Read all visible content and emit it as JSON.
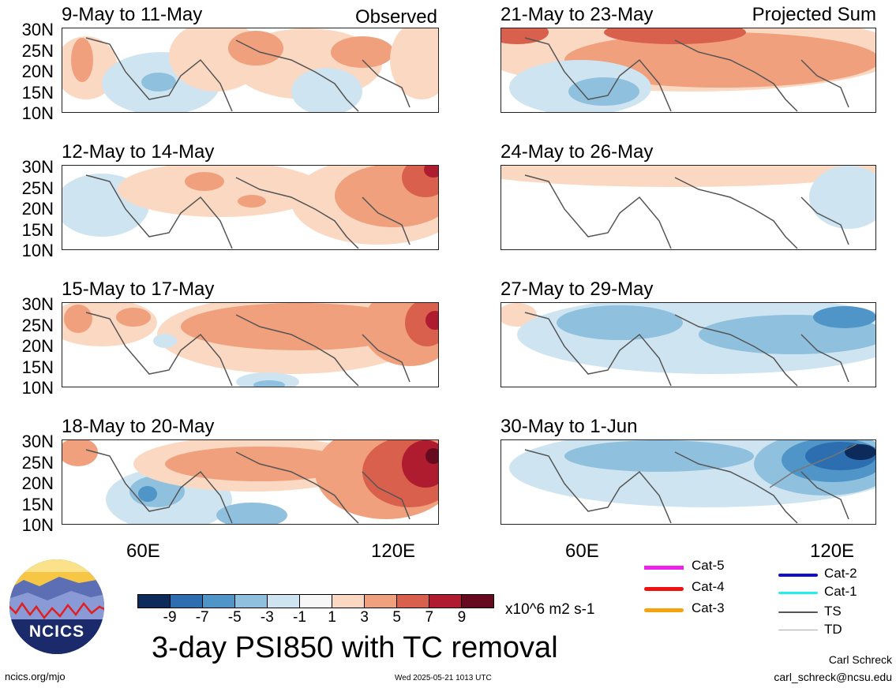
{
  "panels_left": [
    {
      "title": "9-May to 11-May",
      "tag": "Observed"
    },
    {
      "title": "12-May to 14-May",
      "tag": ""
    },
    {
      "title": "15-May to 17-May",
      "tag": ""
    },
    {
      "title": "18-May to 20-May",
      "tag": ""
    }
  ],
  "panels_right": [
    {
      "title": "21-May to 23-May",
      "tag": "Projected Sum"
    },
    {
      "title": "24-May to 26-May",
      "tag": ""
    },
    {
      "title": "27-May to 29-May",
      "tag": ""
    },
    {
      "title": "30-May to 1-Jun",
      "tag": ""
    }
  ],
  "lat_labels": [
    "30N",
    "25N",
    "20N",
    "15N",
    "10N"
  ],
  "lon_labels": [
    "60E",
    "120E"
  ],
  "colorbar": {
    "ticks": [
      "-9",
      "-7",
      "-5",
      "-3",
      "-1",
      "1",
      "3",
      "5",
      "7",
      "9"
    ],
    "colors": [
      "#0c2a5a",
      "#2c6eb0",
      "#4f95c7",
      "#8fc0de",
      "#cfe4f1",
      "#f7f7f7",
      "#fbd8c2",
      "#f0a07c",
      "#d9604c",
      "#b01c2f",
      "#670a1f"
    ],
    "units": "x10^6 m2 s-1"
  },
  "legend": [
    {
      "label": "Cat-5",
      "color": "#ee22ee"
    },
    {
      "label": "Cat-4",
      "color": "#ee1111"
    },
    {
      "label": "Cat-3",
      "color": "#f7a30e"
    },
    {
      "label": "Cat-2",
      "color": "#1010cc"
    },
    {
      "label": "Cat-1",
      "color": "#22eeee"
    },
    {
      "label": "TS",
      "color": "#555555"
    },
    {
      "label": "TD",
      "color": "#aaaaaa"
    }
  ],
  "logo_text": "NCICS",
  "main_title": "3-day PSI850 with TC removal",
  "footer": {
    "url": "ncics.org/mjo",
    "timestamp": "Wed 2025-05-21 1013 UTC",
    "author": "Carl Schreck",
    "email": "carl_schreck@ncsu.edu"
  }
}
